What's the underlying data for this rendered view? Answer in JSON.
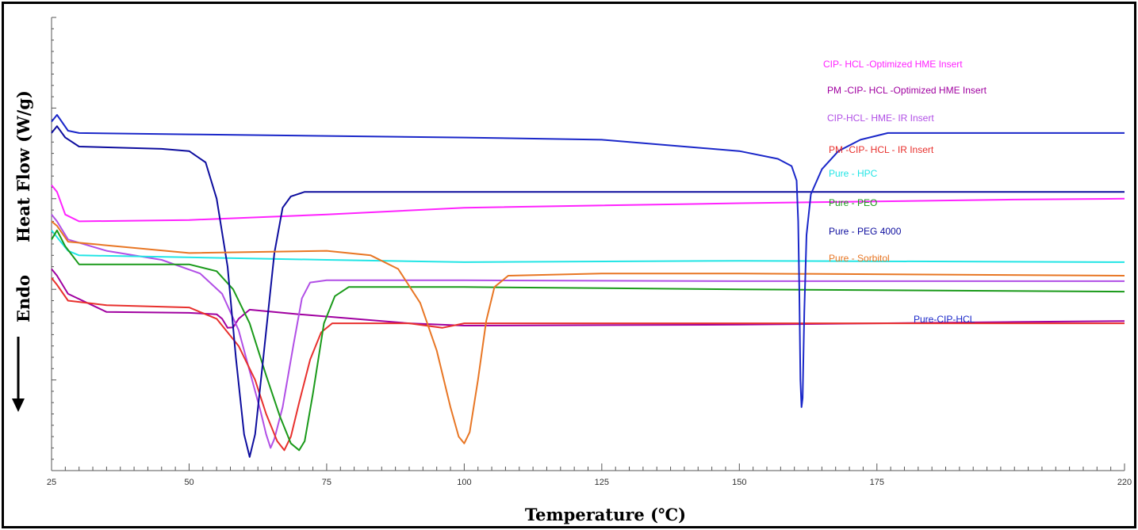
{
  "chart_data": {
    "type": "line",
    "xlabel": "Temperature (℃)",
    "ylabel": "Heat Flow (W/g)",
    "ylabel_direction": "Endo",
    "direction_arrow": "down-arrow-icon",
    "xlim": [
      25,
      220
    ],
    "x_ticks": [
      25,
      50,
      75,
      100,
      125,
      150,
      175,
      220
    ],
    "grid": false,
    "legend": "inline labels at right",
    "series": [
      {
        "name": "CIP- HCL -Optimized HME Insert",
        "color": "#ff22ff",
        "points": [
          [
            25,
            63.0
          ],
          [
            26,
            61.5
          ],
          [
            27.5,
            56.5
          ],
          [
            30,
            55.0
          ],
          [
            50,
            55.3
          ],
          [
            75,
            56.5
          ],
          [
            100,
            58.0
          ],
          [
            150,
            59.0
          ],
          [
            200,
            59.8
          ],
          [
            220,
            60.0
          ]
        ]
      },
      {
        "name": "PM -CIP- HCL -Optimized HME Insert",
        "color": "#a000a0",
        "points": [
          [
            25,
            44.5
          ],
          [
            26,
            43.0
          ],
          [
            28,
            39.0
          ],
          [
            35,
            35.0
          ],
          [
            50,
            34.8
          ],
          [
            55,
            34.5
          ],
          [
            56,
            33.5
          ],
          [
            57,
            31.5
          ],
          [
            58,
            31.6
          ],
          [
            59,
            33.5
          ],
          [
            61,
            35.5
          ],
          [
            70,
            34.5
          ],
          [
            90,
            32.5
          ],
          [
            100,
            32.0
          ],
          [
            150,
            32.2
          ],
          [
            200,
            32.8
          ],
          [
            220,
            33.0
          ]
        ]
      },
      {
        "name": "CIP-HCL- HME- IR Insert",
        "color": "#b14fe6",
        "points": [
          [
            25,
            56.5
          ],
          [
            26,
            55.0
          ],
          [
            28,
            51.0
          ],
          [
            35,
            48.5
          ],
          [
            45,
            46.5
          ],
          [
            52,
            43.5
          ],
          [
            56,
            39.0
          ],
          [
            59,
            31.0
          ],
          [
            61,
            22.0
          ],
          [
            63,
            13.0
          ],
          [
            64,
            8.0
          ],
          [
            64.8,
            5.0
          ],
          [
            65.5,
            7.0
          ],
          [
            67,
            14.0
          ],
          [
            69,
            28.0
          ],
          [
            70.5,
            38.0
          ],
          [
            72,
            41.5
          ],
          [
            75,
            42.0
          ],
          [
            100,
            42.0
          ],
          [
            150,
            41.8
          ],
          [
            220,
            41.8
          ]
        ]
      },
      {
        "name": "PM -CIP- HCL - IR Insert",
        "color": "#e8302d",
        "points": [
          [
            25,
            42.5
          ],
          [
            26,
            41.0
          ],
          [
            28,
            37.5
          ],
          [
            35,
            36.5
          ],
          [
            50,
            36.0
          ],
          [
            55,
            33.5
          ],
          [
            59,
            27.5
          ],
          [
            62,
            20.0
          ],
          [
            64,
            12.5
          ],
          [
            66,
            6.5
          ],
          [
            67.3,
            4.5
          ],
          [
            68.5,
            7.5
          ],
          [
            70,
            15.0
          ],
          [
            72,
            24.5
          ],
          [
            74,
            30.5
          ],
          [
            76,
            32.5
          ],
          [
            90,
            32.5
          ],
          [
            96,
            31.5
          ],
          [
            100,
            32.5
          ],
          [
            150,
            32.5
          ],
          [
            220,
            32.5
          ]
        ]
      },
      {
        "name": "Pure - HPC",
        "color": "#22e5e5",
        "points": [
          [
            25,
            53.0
          ],
          [
            26,
            51.5
          ],
          [
            28,
            48.5
          ],
          [
            30,
            47.5
          ],
          [
            75,
            46.5
          ],
          [
            100,
            46.0
          ],
          [
            150,
            46.3
          ],
          [
            220,
            46.0
          ]
        ]
      },
      {
        "name": "Pure - PEO",
        "color": "#1a9a1a",
        "points": [
          [
            25,
            51.0
          ],
          [
            26,
            53.0
          ],
          [
            27.5,
            49.5
          ],
          [
            30,
            45.5
          ],
          [
            50,
            45.5
          ],
          [
            55,
            44.0
          ],
          [
            58,
            40.0
          ],
          [
            61,
            32.5
          ],
          [
            64,
            21.0
          ],
          [
            66.5,
            12.0
          ],
          [
            68.5,
            6.0
          ],
          [
            70,
            4.5
          ],
          [
            71,
            6.5
          ],
          [
            72.5,
            17.0
          ],
          [
            74.5,
            32.5
          ],
          [
            76.5,
            38.5
          ],
          [
            79,
            40.5
          ],
          [
            100,
            40.5
          ],
          [
            150,
            40.0
          ],
          [
            220,
            39.5
          ]
        ]
      },
      {
        "name": "Pure - PEG 4000",
        "color": "#0d0d9e",
        "points": [
          [
            25,
            74.5
          ],
          [
            26,
            76.0
          ],
          [
            27.5,
            73.5
          ],
          [
            30,
            71.5
          ],
          [
            45,
            71.0
          ],
          [
            50,
            70.5
          ],
          [
            53,
            68.0
          ],
          [
            55,
            60.0
          ],
          [
            57,
            45.0
          ],
          [
            58.5,
            25.0
          ],
          [
            60,
            8.0
          ],
          [
            61,
            3.0
          ],
          [
            62,
            8.0
          ],
          [
            63.5,
            25.0
          ],
          [
            65.5,
            48.0
          ],
          [
            67,
            58.0
          ],
          [
            68.5,
            60.5
          ],
          [
            71,
            61.5
          ],
          [
            100,
            61.5
          ],
          [
            150,
            61.5
          ],
          [
            220,
            61.5
          ]
        ]
      },
      {
        "name": "Pure - Sorbitol",
        "color": "#e87624",
        "points": [
          [
            25,
            55.0
          ],
          [
            26,
            54.0
          ],
          [
            28,
            50.5
          ],
          [
            50,
            48.0
          ],
          [
            75,
            48.5
          ],
          [
            83,
            47.5
          ],
          [
            88,
            44.5
          ],
          [
            92,
            37.0
          ],
          [
            95,
            26.5
          ],
          [
            97.5,
            14.0
          ],
          [
            99,
            7.5
          ],
          [
            100,
            6.0
          ],
          [
            101,
            8.5
          ],
          [
            102.5,
            20.0
          ],
          [
            104,
            33.0
          ],
          [
            105.5,
            40.5
          ],
          [
            108,
            43.0
          ],
          [
            125,
            43.5
          ],
          [
            150,
            43.5
          ],
          [
            220,
            43.0
          ]
        ]
      },
      {
        "name": "Pure-CIP-HCL",
        "color": "#1a27c9",
        "points": [
          [
            25,
            77.0
          ],
          [
            26,
            78.5
          ],
          [
            28,
            75.0
          ],
          [
            30,
            74.5
          ],
          [
            50,
            74.2
          ],
          [
            100,
            73.5
          ],
          [
            125,
            73.0
          ],
          [
            140,
            71.5
          ],
          [
            150,
            70.5
          ],
          [
            157,
            68.8
          ],
          [
            159.5,
            67.2
          ],
          [
            160.4,
            64.0
          ],
          [
            160.7,
            55.0
          ],
          [
            160.9,
            40.0
          ],
          [
            161.1,
            20.0
          ],
          [
            161.3,
            14.0
          ],
          [
            161.5,
            16.0
          ],
          [
            161.8,
            35.0
          ],
          [
            162.2,
            52.0
          ],
          [
            163,
            61.0
          ],
          [
            165,
            66.5
          ],
          [
            168,
            70.5
          ],
          [
            172,
            73.0
          ],
          [
            177,
            74.5
          ],
          [
            185,
            74.5
          ],
          [
            220,
            74.5
          ]
        ]
      }
    ]
  }
}
